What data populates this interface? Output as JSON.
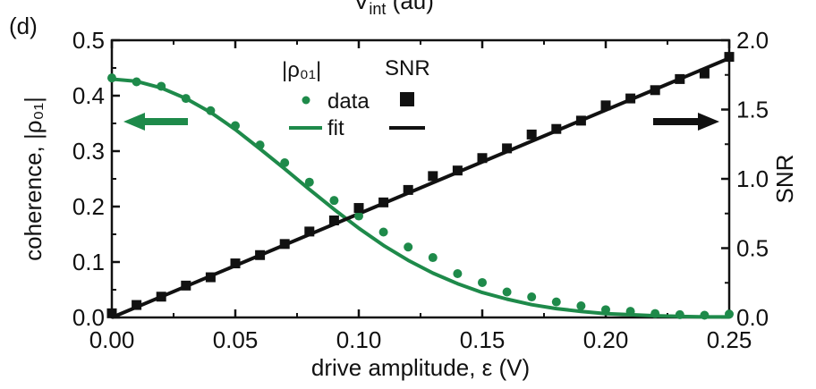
{
  "chart_data": {
    "type": "line",
    "panel_label": "(d)",
    "top_label_clipped": "V_int (au)",
    "xlabel": "drive amplitude, ε (V)",
    "ylabel_left": "coherence, |ρ₀₁|",
    "ylabel_right": "SNR",
    "xlim": [
      0.0,
      0.25
    ],
    "ylim_left": [
      0.0,
      0.5
    ],
    "ylim_right": [
      0.0,
      2.0
    ],
    "x_ticks": [
      "0.00",
      "0.05",
      "0.10",
      "0.15",
      "0.20",
      "0.25"
    ],
    "y_left_ticks": [
      "0.0",
      "0.1",
      "0.2",
      "0.3",
      "0.4",
      "0.5"
    ],
    "y_right_ticks": [
      "0.0",
      "0.5",
      "1.0",
      "1.5",
      "2.0"
    ],
    "grid": false,
    "legend": {
      "header_left": "|ρ₀₁|",
      "header_right": "SNR",
      "row1": "data",
      "row2": "fit"
    },
    "colors": {
      "coherence": "#1e8a4a",
      "snr": "#111111"
    },
    "series": [
      {
        "name": "|ρ₀₁| data",
        "axis": "left",
        "style": "dots",
        "x": [
          0.0,
          0.01,
          0.02,
          0.03,
          0.04,
          0.05,
          0.06,
          0.07,
          0.08,
          0.09,
          0.1,
          0.11,
          0.12,
          0.13,
          0.14,
          0.15,
          0.16,
          0.17,
          0.18,
          0.19,
          0.2,
          0.21,
          0.22,
          0.23,
          0.24,
          0.25
        ],
        "y": [
          0.432,
          0.425,
          0.417,
          0.395,
          0.373,
          0.346,
          0.311,
          0.279,
          0.244,
          0.211,
          0.183,
          0.154,
          0.127,
          0.108,
          0.079,
          0.063,
          0.046,
          0.037,
          0.028,
          0.021,
          0.014,
          0.011,
          0.007,
          0.005,
          0.004,
          0.006
        ]
      },
      {
        "name": "|ρ₀₁| fit",
        "axis": "left",
        "style": "line",
        "x": [
          0.0,
          0.01,
          0.02,
          0.03,
          0.04,
          0.05,
          0.06,
          0.07,
          0.08,
          0.09,
          0.1,
          0.11,
          0.12,
          0.13,
          0.14,
          0.15,
          0.16,
          0.17,
          0.18,
          0.19,
          0.2,
          0.21,
          0.22,
          0.23,
          0.24,
          0.25
        ],
        "y": [
          0.43,
          0.426,
          0.414,
          0.395,
          0.37,
          0.339,
          0.304,
          0.268,
          0.231,
          0.195,
          0.161,
          0.13,
          0.103,
          0.08,
          0.061,
          0.045,
          0.033,
          0.023,
          0.016,
          0.011,
          0.007,
          0.005,
          0.003,
          0.002,
          0.001,
          0.001
        ]
      },
      {
        "name": "SNR data",
        "axis": "right",
        "style": "squares",
        "x": [
          0.0,
          0.01,
          0.02,
          0.03,
          0.04,
          0.05,
          0.06,
          0.07,
          0.08,
          0.09,
          0.1,
          0.11,
          0.12,
          0.13,
          0.14,
          0.15,
          0.16,
          0.17,
          0.18,
          0.19,
          0.2,
          0.21,
          0.22,
          0.23,
          0.24,
          0.25
        ],
        "y": [
          0.03,
          0.09,
          0.15,
          0.23,
          0.29,
          0.39,
          0.45,
          0.53,
          0.62,
          0.7,
          0.79,
          0.83,
          0.92,
          1.02,
          1.06,
          1.15,
          1.22,
          1.32,
          1.36,
          1.42,
          1.53,
          1.58,
          1.64,
          1.72,
          1.76,
          1.88
        ]
      },
      {
        "name": "SNR fit",
        "axis": "right",
        "style": "line",
        "x": [
          0.0,
          0.25
        ],
        "y": [
          0.0,
          1.87
        ]
      }
    ]
  }
}
